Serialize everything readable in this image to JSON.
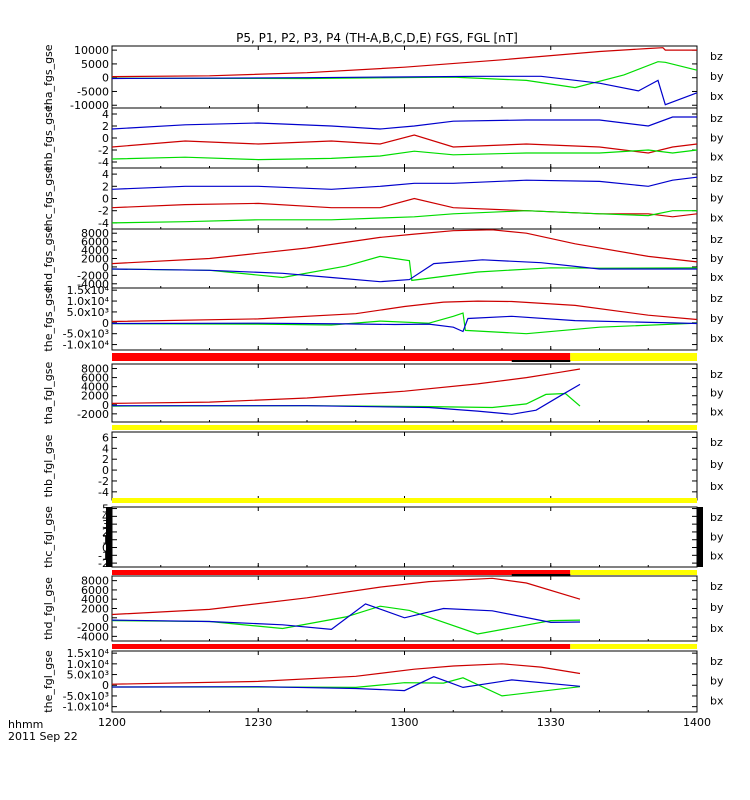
{
  "title": "P5, P1, P2, P3, P4 (TH-A,B,C,D,E) FGS, FGL [nT]",
  "footer": {
    "label": "hhmm",
    "date": "2011 Sep 22"
  },
  "colors": {
    "bz": "#cc0000",
    "by": "#00dd00",
    "bx": "#0000cc",
    "bar_red": "#ff0000",
    "bar_yellow": "#ffff00",
    "bar_black": "#000000"
  },
  "chart_data": {
    "type": "line",
    "xaxis": {
      "range": [
        "12:00",
        "14:00"
      ],
      "ticks": [
        "1200",
        "1230",
        "1300",
        "1330",
        "1400"
      ],
      "tick_minutes": [
        0,
        30,
        60,
        90,
        120
      ]
    },
    "panels": [
      {
        "ylabel": "tha_fgs_gse",
        "yticks": [
          "10000",
          "5000",
          "0",
          "-5000",
          "-10000"
        ],
        "ytick_values": [
          10000,
          5000,
          0,
          -5000,
          -10000
        ],
        "ylim": [
          -11000,
          11500
        ],
        "legend": [
          "bz",
          "by",
          "bx"
        ],
        "series": [
          {
            "name": "bz",
            "x": [
              0,
              20,
              40,
              60,
              80,
              100,
              110,
              113,
              113.5,
              120
            ],
            "y": [
              400,
              700,
              1800,
              3800,
              6500,
              9500,
              10600,
              10900,
              10000,
              10000
            ]
          },
          {
            "name": "by",
            "x": [
              0,
              40,
              70,
              85,
              95,
              105,
              112,
              113.5,
              120
            ],
            "y": [
              -200,
              -300,
              200,
              -1000,
              -3600,
              1000,
              5800,
              5600,
              2700
            ]
          },
          {
            "name": "bx",
            "x": [
              0,
              40,
              75,
              88,
              100,
              108,
              112,
              113.5,
              120
            ],
            "y": [
              -300,
              0,
              500,
              500,
              -2000,
              -4800,
              -1000,
              -9800,
              -5500
            ]
          }
        ]
      },
      {
        "ylabel": "thb_fgs_gse",
        "yticks": [
          "4",
          "2",
          "0",
          "-2",
          "-4"
        ],
        "ytick_values": [
          4,
          2,
          0,
          -2,
          -4
        ],
        "ylim": [
          -5,
          5
        ],
        "legend": [
          "bz",
          "by",
          "bx"
        ],
        "series": [
          {
            "name": "bz",
            "x": [
              0,
              15,
              30,
              45,
              55,
              62,
              70,
              85,
              100,
              110,
              115,
              120
            ],
            "y": [
              -1.5,
              -0.5,
              -1.0,
              -0.5,
              -1.0,
              0.5,
              -1.5,
              -1.0,
              -1.5,
              -2.5,
              -1.5,
              -1.0
            ]
          },
          {
            "name": "by",
            "x": [
              0,
              15,
              30,
              45,
              55,
              62,
              70,
              85,
              100,
              110,
              115,
              120
            ],
            "y": [
              -3.5,
              -3.2,
              -3.6,
              -3.4,
              -3.0,
              -2.2,
              -2.8,
              -2.5,
              -2.5,
              -2.0,
              -2.5,
              -2.0
            ]
          },
          {
            "name": "bx",
            "x": [
              0,
              15,
              30,
              45,
              55,
              62,
              70,
              85,
              100,
              110,
              115,
              120
            ],
            "y": [
              1.5,
              2.2,
              2.5,
              2.0,
              1.5,
              2.0,
              2.8,
              3.0,
              3.0,
              2.0,
              3.5,
              3.5
            ]
          }
        ]
      },
      {
        "ylabel": "thc_fgs_gse",
        "yticks": [
          "4",
          "2",
          "0",
          "-2",
          "-4"
        ],
        "ytick_values": [
          4,
          2,
          0,
          -2,
          -4
        ],
        "ylim": [
          -5,
          5
        ],
        "legend": [
          "bz",
          "by",
          "bx"
        ],
        "series": [
          {
            "name": "bz",
            "x": [
              0,
              15,
              30,
              45,
              55,
              62,
              70,
              85,
              100,
              110,
              115,
              120
            ],
            "y": [
              -1.5,
              -1.0,
              -0.8,
              -1.5,
              -1.5,
              0.0,
              -1.5,
              -2.0,
              -2.5,
              -2.5,
              -3.0,
              -2.5
            ]
          },
          {
            "name": "by",
            "x": [
              0,
              15,
              30,
              45,
              55,
              62,
              70,
              85,
              100,
              110,
              115,
              120
            ],
            "y": [
              -4.0,
              -3.8,
              -3.5,
              -3.5,
              -3.2,
              -3.0,
              -2.5,
              -2.0,
              -2.5,
              -2.8,
              -2.0,
              -2.0
            ]
          },
          {
            "name": "bx",
            "x": [
              0,
              15,
              30,
              45,
              55,
              62,
              70,
              85,
              100,
              110,
              115,
              120
            ],
            "y": [
              1.5,
              2.0,
              2.0,
              1.5,
              2.0,
              2.5,
              2.5,
              3.0,
              2.8,
              2.0,
              3.0,
              3.5
            ]
          }
        ]
      },
      {
        "ylabel": "thd_fgs_gse",
        "yticks": [
          "8000",
          "6000",
          "4000",
          "2000",
          "0",
          "-2000",
          "-4000"
        ],
        "ytick_values": [
          8000,
          6000,
          4000,
          2000,
          0,
          -2000,
          -4000
        ],
        "ylim": [
          -5000,
          9000
        ],
        "legend": [
          "bz",
          "by",
          "bx"
        ],
        "series": [
          {
            "name": "bz",
            "x": [
              0,
              20,
              40,
              55,
              62,
              70,
              78,
              85,
              95,
              110,
              120
            ],
            "y": [
              800,
              2000,
              4500,
              7000,
              7800,
              8600,
              8800,
              8000,
              5500,
              2500,
              1200
            ]
          },
          {
            "name": "by",
            "x": [
              0,
              20,
              35,
              48,
              55,
              61,
              61.5,
              75,
              90,
              100,
              120
            ],
            "y": [
              -500,
              -800,
              -2500,
              200,
              2500,
              1500,
              -3200,
              -1200,
              -200,
              -300,
              -200
            ]
          },
          {
            "name": "bx",
            "x": [
              0,
              20,
              35,
              45,
              55,
              61,
              66,
              76,
              88,
              100,
              120
            ],
            "y": [
              -500,
              -800,
              -1500,
              -2500,
              -3500,
              -3000,
              800,
              1700,
              1000,
              -500,
              -500
            ]
          }
        ]
      },
      {
        "ylabel": "the_fgs_gse",
        "yticks": [
          "1.5x10⁴",
          "1.0x10⁴",
          "5.0x10³",
          "0",
          "-5.0x10³",
          "-1.0x10⁴"
        ],
        "ytick_values": [
          15000,
          10000,
          5000,
          0,
          -5000,
          -10000
        ],
        "ylim": [
          -12500,
          16000
        ],
        "legend": [
          "bz",
          "by",
          "bx"
        ],
        "series": [
          {
            "name": "bz",
            "x": [
              0,
              30,
              50,
              60,
              68,
              75,
              82,
              95,
              110,
              120
            ],
            "y": [
              600,
              1800,
              4200,
              7500,
              9500,
              10000,
              9800,
              8000,
              3500,
              1500
            ]
          },
          {
            "name": "by",
            "x": [
              0,
              30,
              45,
              55,
              65,
              70,
              72,
              72.5,
              85,
              100,
              120
            ],
            "y": [
              -400,
              -600,
              -1000,
              800,
              -200,
              3000,
              4500,
              -3500,
              -5000,
              -2000,
              -200
            ]
          },
          {
            "name": "bx",
            "x": [
              0,
              30,
              48,
              58,
              65,
              70,
              72,
              73,
              82,
              95,
              120
            ],
            "y": [
              -300,
              -200,
              -500,
              -800,
              -600,
              -2000,
              -4000,
              2000,
              3000,
              1000,
              -300
            ]
          }
        ]
      },
      {
        "ylabel": "tha_fgl_gse",
        "yticks": [
          "8000",
          "6000",
          "4000",
          "2000",
          "0",
          "-2000"
        ],
        "ytick_values": [
          8000,
          6000,
          4000,
          2000,
          0,
          -2000
        ],
        "ylim": [
          -3800,
          9000
        ],
        "legend": [
          "bz",
          "by",
          "bx"
        ],
        "series": [
          {
            "name": "bz",
            "x": [
              0,
              20,
              40,
              60,
              75,
              85,
              92,
              96
            ],
            "y": [
              300,
              600,
              1500,
              3000,
              4600,
              6000,
              7200,
              7900
            ]
          },
          {
            "name": "by",
            "x": [
              0,
              40,
              65,
              78,
              85,
              89,
              93,
              96
            ],
            "y": [
              -300,
              -200,
              -400,
              -600,
              200,
              2300,
              2500,
              -300
            ]
          },
          {
            "name": "bx",
            "x": [
              0,
              40,
              65,
              75,
              82,
              87,
              92,
              96
            ],
            "y": [
              -200,
              -200,
              -600,
              -1400,
              -2100,
              -1200,
              2000,
              4500
            ]
          }
        ]
      },
      {
        "ylabel": "thb_fgl_gse",
        "yticks": [
          "6",
          "4",
          "2",
          "0",
          "-2",
          "-4"
        ],
        "ytick_values": [
          6,
          4,
          2,
          0,
          -2,
          -4
        ],
        "ylim": [
          -5.5,
          7
        ],
        "legend": [
          "bz",
          "by",
          "bx"
        ],
        "series": []
      },
      {
        "ylabel": "thc_fgl_gse",
        "yticks": [
          "5",
          "4",
          "3",
          "2",
          "1",
          "0",
          "-1",
          "-2"
        ],
        "ytick_values": [
          5,
          4,
          3,
          2,
          1,
          0,
          -1,
          -2
        ],
        "ylim": [
          -2.5,
          5.2
        ],
        "legend": [
          "bz",
          "by",
          "bx"
        ],
        "series": []
      },
      {
        "ylabel": "thd_fgl_gse",
        "yticks": [
          "8000",
          "6000",
          "4000",
          "2000",
          "0",
          "-2000",
          "-4000"
        ],
        "ytick_values": [
          8000,
          6000,
          4000,
          2000,
          0,
          -2000,
          -4000
        ],
        "ylim": [
          -5000,
          9000
        ],
        "legend": [
          "bz",
          "by",
          "bx"
        ],
        "series": [
          {
            "name": "bz",
            "x": [
              0,
              20,
              40,
              55,
              65,
              78,
              85,
              96
            ],
            "y": [
              700,
              1800,
              4300,
              6600,
              7800,
              8500,
              7500,
              4000
            ]
          },
          {
            "name": "by",
            "x": [
              0,
              20,
              35,
              48,
              55,
              61,
              75,
              90,
              96
            ],
            "y": [
              -600,
              -800,
              -2300,
              200,
              2500,
              1600,
              -3500,
              -600,
              -500
            ]
          },
          {
            "name": "bx",
            "x": [
              0,
              20,
              35,
              45,
              52,
              60,
              68,
              78,
              90,
              96
            ],
            "y": [
              -500,
              -800,
              -1500,
              -2500,
              3000,
              0,
              2000,
              1500,
              -1000,
              -900
            ]
          }
        ]
      },
      {
        "ylabel": "the_fgl_gse",
        "yticks": [
          "1.5x10⁴",
          "1.0x10⁴",
          "5.0x10³",
          "0",
          "-5.0x10³",
          "-1.0x10⁴"
        ],
        "ytick_values": [
          15000,
          10000,
          5000,
          0,
          -5000,
          -10000
        ],
        "ylim": [
          -12500,
          16000
        ],
        "legend": [
          "bz",
          "by",
          "bx"
        ],
        "series": [
          {
            "name": "bz",
            "x": [
              0,
              30,
              50,
              62,
              70,
              80,
              88,
              96
            ],
            "y": [
              500,
              1800,
              4200,
              7500,
              9000,
              10000,
              8500,
              5500
            ]
          },
          {
            "name": "by",
            "x": [
              0,
              30,
              50,
              60,
              68,
              72,
              80,
              96
            ],
            "y": [
              -800,
              -800,
              -1000,
              1200,
              1000,
              3500,
              -5000,
              -700
            ]
          },
          {
            "name": "bx",
            "x": [
              0,
              30,
              50,
              60,
              66,
              72,
              82,
              96
            ],
            "y": [
              -800,
              -700,
              -1500,
              -2500,
              4000,
              -1000,
              2500,
              -500
            ]
          }
        ]
      }
    ],
    "status_bars": [
      {
        "after_panel": 4,
        "segments": [
          {
            "color": "red",
            "from": 0,
            "to": 94
          },
          {
            "color": "yellow",
            "from": 94,
            "to": 120
          }
        ],
        "black_marks": [
          {
            "from": 82,
            "to": 94
          }
        ]
      },
      {
        "after_panel": 5,
        "segments": [
          {
            "color": "yellow",
            "from": 0,
            "to": 120
          }
        ],
        "black_marks": []
      },
      {
        "after_panel": 6,
        "segments": [
          {
            "color": "yellow",
            "from": 0,
            "to": 120
          }
        ],
        "black_marks": []
      },
      {
        "after_panel": 7,
        "segments": [
          {
            "color": "red",
            "from": 0,
            "to": 94
          },
          {
            "color": "yellow",
            "from": 94,
            "to": 120
          }
        ],
        "black_marks": [
          {
            "from": 82,
            "to": 94
          }
        ]
      },
      {
        "after_panel": 8,
        "segments": [
          {
            "color": "red",
            "from": 0,
            "to": 94
          },
          {
            "color": "yellow",
            "from": 94,
            "to": 120
          }
        ],
        "black_marks": []
      }
    ]
  }
}
